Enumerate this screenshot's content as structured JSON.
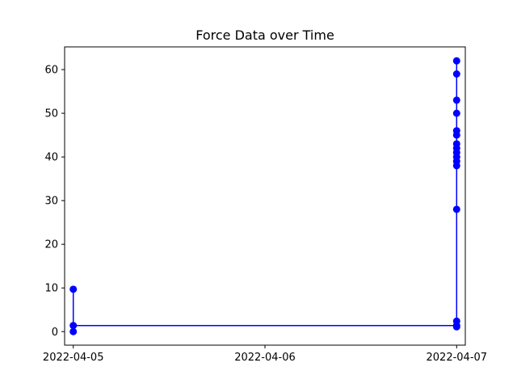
{
  "chart_data": {
    "type": "line",
    "title": "Force Data over Time",
    "xlabel": "",
    "ylabel": "",
    "grid": false,
    "x_axis": {
      "type": "date",
      "range": [
        "2022-04-04T22:55",
        "2022-04-07T01:05"
      ],
      "ticks": [
        "2022-04-05",
        "2022-04-06",
        "2022-04-07"
      ]
    },
    "y_axis": {
      "range": [
        -3.1,
        65.2
      ],
      "ticks": [
        0,
        10,
        20,
        30,
        40,
        50,
        60
      ]
    },
    "series": [
      {
        "color": "#0000ff",
        "marker": "circle",
        "points": [
          {
            "x": "2022-04-05T00:00",
            "y": 0.0
          },
          {
            "x": "2022-04-05T00:00",
            "y": 9.7
          },
          {
            "x": "2022-04-05T00:00",
            "y": 1.4
          },
          {
            "x": "2022-04-07T00:00",
            "y": 1.4
          },
          {
            "x": "2022-04-07T00:00",
            "y": 1.1
          },
          {
            "x": "2022-04-07T00:00",
            "y": 2.4
          },
          {
            "x": "2022-04-07T00:00",
            "y": 28.0
          },
          {
            "x": "2022-04-07T00:00",
            "y": 38.0
          },
          {
            "x": "2022-04-07T00:00",
            "y": 39.0
          },
          {
            "x": "2022-04-07T00:00",
            "y": 40.0
          },
          {
            "x": "2022-04-07T00:00",
            "y": 41.0
          },
          {
            "x": "2022-04-07T00:00",
            "y": 42.0
          },
          {
            "x": "2022-04-07T00:00",
            "y": 43.0
          },
          {
            "x": "2022-04-07T00:00",
            "y": 45.0
          },
          {
            "x": "2022-04-07T00:00",
            "y": 46.0
          },
          {
            "x": "2022-04-07T00:00",
            "y": 50.0
          },
          {
            "x": "2022-04-07T00:00",
            "y": 53.0
          },
          {
            "x": "2022-04-07T00:00",
            "y": 59.0
          },
          {
            "x": "2022-04-07T00:00",
            "y": 62.0
          }
        ]
      }
    ]
  }
}
